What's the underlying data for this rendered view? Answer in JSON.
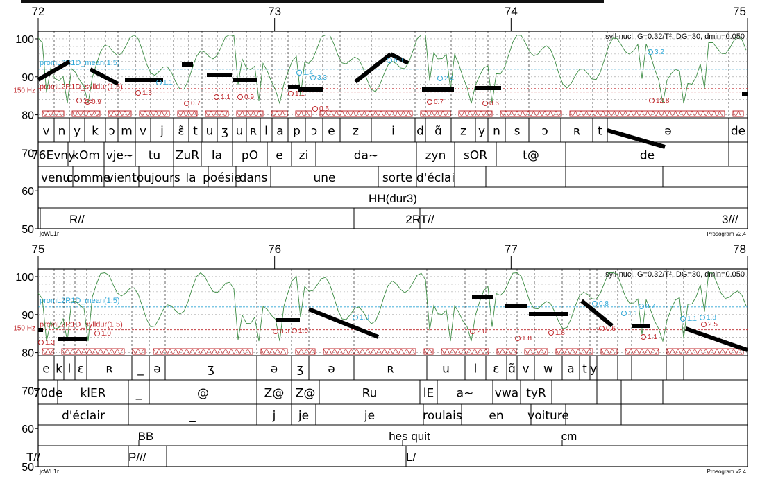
{
  "header": {
    "title_bar": ""
  },
  "colors": {
    "ref_blue": "#2fa8d8",
    "ref_red": "#c0282c",
    "green": "#3d8c44",
    "blue": "#3844b0",
    "stylize": "#000000",
    "hatch": "#c0282c"
  },
  "chart_data": [
    {
      "type": "prosogram",
      "time_ticks": [
        "72",
        "73",
        "74",
        "75"
      ],
      "time_range": [
        72,
        75
      ],
      "y_ticks": [
        "50",
        "60",
        "70",
        "80",
        "90",
        "100"
      ],
      "ylim": [
        50,
        102
      ],
      "header_text": "syll-nucl, G=0.32/T², DG=30, dmin=0.050",
      "ref_labels": {
        "mean": "promL2R1D_mean(1.5)",
        "syll": "promL2R1D_sylldur(1.5)",
        "hz": "150 Hz"
      },
      "bottom_left": "jcWL1r",
      "bottom_right": "Prosogram v2.4",
      "tiers": {
        "phones": [
          {
            "t": "v"
          },
          {
            "t": "n"
          },
          {
            "t": "y"
          },
          {
            "t": "k"
          },
          {
            "t": "ɔ"
          },
          {
            "t": "m"
          },
          {
            "t": "v"
          },
          {
            "t": "j"
          },
          {
            "t": "ɛ̃"
          },
          {
            "t": "t"
          },
          {
            "t": "u"
          },
          {
            "t": "ʒ"
          },
          {
            "t": "u"
          },
          {
            "t": "ʀ"
          },
          {
            "t": "l"
          },
          {
            "t": "a"
          },
          {
            "t": "p"
          },
          {
            "t": "ɔ"
          },
          {
            "t": "e"
          },
          {
            "t": "z"
          },
          {
            "t": "i"
          },
          {
            "t": "d"
          },
          {
            "t": "ɑ̃"
          },
          {
            "t": "z"
          },
          {
            "t": "y"
          },
          {
            "t": "n"
          },
          {
            "t": "s"
          },
          {
            "t": "ɔ"
          },
          {
            "t": "ʀ"
          },
          {
            "t": "t"
          },
          {
            "t": "ə"
          },
          {
            "t": "de"
          }
        ],
        "syllables": [
          {
            "t": "76Evny"
          },
          {
            "t": "kOm"
          },
          {
            "t": "vje~"
          },
          {
            "t": "tu"
          },
          {
            "t": "ZuR"
          },
          {
            "t": "la"
          },
          {
            "t": "pO"
          },
          {
            "t": "e"
          },
          {
            "t": "zi"
          },
          {
            "t": "da~"
          },
          {
            "t": "zyn"
          },
          {
            "t": "sOR"
          },
          {
            "t": "t@"
          },
          {
            "t": "de"
          }
        ],
        "words": [
          {
            "t": "venu"
          },
          {
            "t": "comme"
          },
          {
            "t": "vient"
          },
          {
            "t": "toujours"
          },
          {
            "t": "la"
          },
          {
            "t": "poésie"
          },
          {
            "t": "dans"
          },
          {
            "t": "une"
          },
          {
            "t": "sorte"
          },
          {
            "t": "d'éclai"
          }
        ],
        "hh": [
          {
            "t": "HH(dur3)"
          }
        ],
        "break": [
          {
            "t": "R//"
          },
          {
            "t": "2RT//"
          },
          {
            "t": "3///"
          }
        ]
      },
      "annotations": [
        "1.3",
        "0.9",
        "1.3",
        "1.1",
        "0.7",
        "1.1",
        "0.9",
        "1.4",
        "3.3",
        "1.1",
        "0.5",
        "6.8",
        "2.4",
        "0.7",
        "0.6",
        "3.2",
        "12.8"
      ]
    },
    {
      "type": "prosogram",
      "time_ticks": [
        "75",
        "76",
        "77",
        "78"
      ],
      "time_range": [
        75,
        78
      ],
      "y_ticks": [
        "50",
        "60",
        "70",
        "80",
        "90",
        "100"
      ],
      "ylim": [
        50,
        102
      ],
      "header_text": "syll-nucl, G=0.32/T², DG=30, dmin=0.050",
      "ref_labels": {
        "mean": "promL2R1D_mean(1.5)",
        "syll": "promL2R1D_sylldur(1.5)",
        "hz": "150 Hz"
      },
      "bottom_left": "jcWL1r",
      "bottom_right": "Prosogram v2.4",
      "tiers": {
        "phones": [
          {
            "t": "e"
          },
          {
            "t": "k"
          },
          {
            "t": "l"
          },
          {
            "t": "ɛ"
          },
          {
            "t": "ʀ"
          },
          {
            "t": "_"
          },
          {
            "t": "ə"
          },
          {
            "t": "ʒ"
          },
          {
            "t": "ə"
          },
          {
            "t": "ʒ"
          },
          {
            "t": "ə"
          },
          {
            "t": "ʀ"
          },
          {
            "t": "u"
          },
          {
            "t": "l"
          },
          {
            "t": "ɛ"
          },
          {
            "t": "ɑ̃"
          },
          {
            "t": "v"
          },
          {
            "t": "w"
          },
          {
            "t": "a"
          },
          {
            "t": "t"
          },
          {
            "t": "y"
          }
        ],
        "syllables": [
          {
            "t": "70de"
          },
          {
            "t": "klER"
          },
          {
            "t": "_"
          },
          {
            "t": "@"
          },
          {
            "t": "Z@"
          },
          {
            "t": "Z@"
          },
          {
            "t": "Ru"
          },
          {
            "t": "lE"
          },
          {
            "t": "a~"
          },
          {
            "t": "vwa"
          },
          {
            "t": "tyR"
          }
        ],
        "words": [
          {
            "t": "d'éclair"
          },
          {
            "t": "_"
          },
          {
            "t": "j"
          },
          {
            "t": "je"
          },
          {
            "t": "je"
          },
          {
            "t": "roulais"
          },
          {
            "t": "en"
          },
          {
            "t": "voiture"
          }
        ],
        "hh": [
          {
            "t": "BB"
          },
          {
            "t": "hes quit"
          },
          {
            "t": "cm"
          }
        ],
        "break": [
          {
            "t": "T//"
          },
          {
            "t": "P///"
          },
          {
            "t": "L/"
          }
        ]
      },
      "annotations": [
        "1.3",
        "1.0",
        "0.3",
        "1.0",
        "1.0",
        "2.0",
        "1.8",
        "1.8",
        "0.6",
        "0.8",
        "1.1",
        "1.1",
        "0.7",
        "1.1",
        "1.8",
        "2.5"
      ]
    }
  ]
}
